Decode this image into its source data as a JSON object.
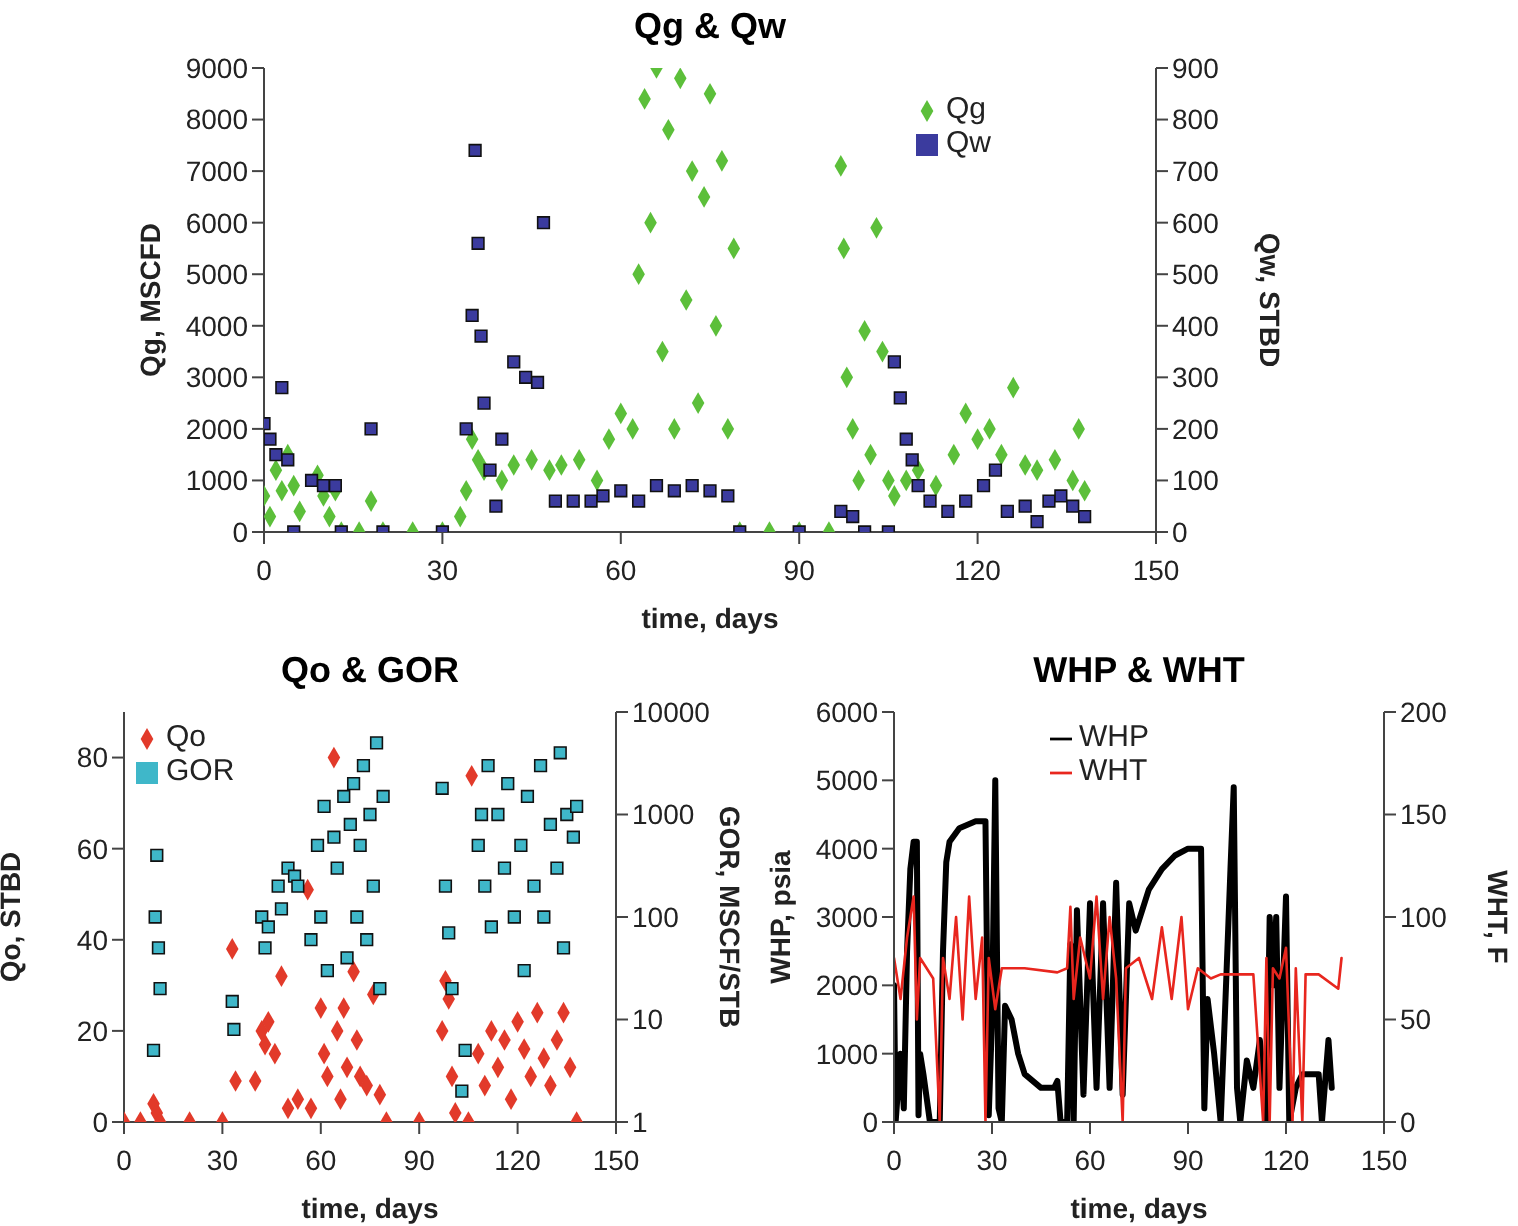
{
  "chart_data": [
    {
      "type": "scatter",
      "title": "Qg & Qw",
      "xlabel": "time, days",
      "ylabel": "Qg, MSCFD",
      "y2label": "Qw, STBD",
      "xlim": [
        0,
        150
      ],
      "xticks": [
        0,
        30,
        60,
        90,
        120,
        150
      ],
      "ylim": [
        0,
        9000
      ],
      "yticks": [
        0,
        1000,
        2000,
        3000,
        4000,
        5000,
        6000,
        7000,
        8000,
        9000
      ],
      "y2lim": [
        0,
        900
      ],
      "y2ticks": [
        0,
        100,
        200,
        300,
        400,
        500,
        600,
        700,
        800,
        900
      ],
      "legend": "top right",
      "series": [
        {
          "name": "Qg",
          "color": "#5cbf3a",
          "marker": "diamond",
          "x": [
            0,
            1,
            2,
            3,
            4,
            5,
            6,
            9,
            10,
            11,
            12,
            13,
            16,
            18,
            20,
            25,
            30,
            33,
            34,
            35,
            36,
            37,
            40,
            42,
            45,
            48,
            50,
            53,
            56,
            58,
            60,
            62,
            63,
            64,
            65,
            66,
            67,
            68,
            69,
            70,
            71,
            72,
            73,
            74,
            75,
            76,
            77,
            78,
            79,
            80,
            85,
            90,
            95,
            97,
            97.5,
            98,
            99,
            100,
            101,
            102,
            103,
            104,
            105,
            106,
            108,
            110,
            113,
            116,
            118,
            120,
            122,
            124,
            126,
            128,
            130,
            133,
            136,
            137,
            138
          ],
          "values": [
            700,
            300,
            1200,
            800,
            1500,
            900,
            400,
            1100,
            700,
            300,
            800,
            0,
            0,
            600,
            0,
            0,
            0,
            300,
            800,
            1800,
            1400,
            1200,
            1000,
            1300,
            1400,
            1200,
            1300,
            1400,
            1000,
            1800,
            2300,
            2000,
            5000,
            8400,
            6000,
            9000,
            3500,
            7800,
            2000,
            8800,
            4500,
            7000,
            2500,
            6500,
            8500,
            4000,
            7200,
            2000,
            5500,
            0,
            0,
            0,
            0,
            7100,
            5500,
            3000,
            2000,
            1000,
            3900,
            1500,
            5900,
            3500,
            1000,
            700,
            1000,
            1200,
            900,
            1500,
            2300,
            1800,
            2000,
            1500,
            2800,
            1300,
            1200,
            1400,
            1000,
            2000,
            800
          ]
        },
        {
          "name": "Qw",
          "color": "#3b3b9e",
          "marker": "square",
          "axis": "y2",
          "x": [
            0,
            1,
            2,
            3,
            4,
            5,
            8,
            10,
            12,
            13,
            18,
            20,
            30,
            34,
            35,
            35.5,
            36,
            36.5,
            37,
            38,
            39,
            40,
            42,
            44,
            46,
            47,
            49,
            52,
            55,
            57,
            60,
            63,
            66,
            69,
            72,
            75,
            78,
            80,
            90,
            97,
            99,
            101,
            105,
            106,
            107,
            108,
            109,
            110,
            112,
            115,
            118,
            121,
            123,
            125,
            128,
            130,
            132,
            134,
            136,
            138
          ],
          "values": [
            210,
            180,
            150,
            280,
            140,
            0,
            100,
            90,
            90,
            0,
            200,
            0,
            0,
            200,
            420,
            740,
            560,
            380,
            250,
            120,
            50,
            180,
            330,
            300,
            290,
            600,
            60,
            60,
            60,
            70,
            80,
            60,
            90,
            80,
            90,
            80,
            70,
            0,
            0,
            40,
            30,
            0,
            0,
            330,
            260,
            180,
            140,
            90,
            60,
            40,
            60,
            90,
            120,
            40,
            50,
            20,
            60,
            70,
            50,
            30
          ]
        }
      ]
    },
    {
      "type": "scatter",
      "title": "Qo & GOR",
      "xlabel": "time, days",
      "ylabel": "Qo, STBD",
      "y2label": "GOR, MSCF/STB",
      "xlim": [
        0,
        150
      ],
      "xticks": [
        0,
        30,
        60,
        90,
        120,
        150
      ],
      "ylim": [
        0,
        90
      ],
      "yticks": [
        0,
        20,
        40,
        60,
        80
      ],
      "y2lim": [
        1,
        10000
      ],
      "y2ticks": [
        1,
        10,
        100,
        1000,
        10000
      ],
      "log": "y2",
      "legend": "top left",
      "series": [
        {
          "name": "Qo",
          "color": "#e23a2a",
          "marker": "diamond",
          "x": [
            0,
            5,
            9,
            10,
            11,
            20,
            30,
            33,
            34,
            40,
            42,
            43,
            44,
            46,
            48,
            50,
            53,
            56,
            57,
            60,
            61,
            62,
            64,
            65,
            66,
            67,
            68,
            70,
            71,
            72,
            74,
            76,
            78,
            80,
            90,
            97,
            98,
            99,
            100,
            101,
            105,
            106,
            108,
            110,
            112,
            114,
            116,
            118,
            120,
            122,
            124,
            126,
            128,
            130,
            132,
            134,
            136,
            138
          ],
          "values": [
            0,
            0,
            4,
            2,
            0,
            0,
            0,
            38,
            9,
            9,
            20,
            17,
            22,
            15,
            32,
            3,
            5,
            51,
            3,
            25,
            15,
            10,
            80,
            20,
            5,
            25,
            12,
            33,
            18,
            10,
            8,
            28,
            6,
            0,
            0,
            20,
            31,
            27,
            10,
            2,
            0,
            76,
            15,
            8,
            20,
            12,
            18,
            5,
            22,
            16,
            10,
            24,
            14,
            8,
            18,
            24,
            12,
            0
          ]
        },
        {
          "name": "GOR",
          "color": "#3fb7c9",
          "marker": "square",
          "axis": "y2",
          "x": [
            9,
            9.5,
            10,
            10.5,
            11,
            33,
            33.5,
            42,
            43,
            44,
            47,
            48,
            50,
            52,
            53,
            57,
            59,
            60,
            61,
            62,
            64,
            65,
            67,
            68,
            69,
            70,
            71,
            72,
            73,
            74,
            75,
            76,
            77,
            78,
            79,
            97,
            98,
            99,
            100,
            103,
            104,
            108,
            109,
            110,
            111,
            112,
            114,
            116,
            117,
            119,
            121,
            122,
            123,
            125,
            127,
            128,
            130,
            132,
            133,
            134,
            135,
            137,
            138
          ],
          "values": [
            5,
            100,
            400,
            50,
            20,
            15,
            8,
            100,
            50,
            80,
            200,
            120,
            300,
            250,
            200,
            60,
            500,
            100,
            1200,
            30,
            600,
            300,
            1500,
            40,
            800,
            2000,
            100,
            500,
            3000,
            60,
            1000,
            200,
            5000,
            20,
            1500,
            1800,
            200,
            70,
            20,
            2,
            5,
            500,
            1000,
            200,
            3000,
            80,
            1000,
            300,
            2000,
            100,
            500,
            30,
            1500,
            200,
            3000,
            100,
            800,
            300,
            4000,
            50,
            1000,
            600,
            1200
          ]
        }
      ]
    },
    {
      "type": "line",
      "title": "WHP & WHT",
      "xlabel": "time, days",
      "ylabel": "WHP, psia",
      "y2label": "WHT, F",
      "xlim": [
        0,
        150
      ],
      "xticks": [
        0,
        30,
        60,
        90,
        120,
        150
      ],
      "ylim": [
        0,
        6000
      ],
      "yticks": [
        0,
        1000,
        2000,
        3000,
        4000,
        5000,
        6000
      ],
      "y2lim": [
        0,
        200
      ],
      "y2ticks": [
        0,
        50,
        100,
        150,
        200
      ],
      "legend": "top",
      "series": [
        {
          "name": "WHP",
          "color": "#000000",
          "x": [
            0,
            0.5,
            2,
            3,
            4,
            5,
            6,
            7,
            7.5,
            8,
            9,
            11,
            13,
            14,
            15,
            16,
            17,
            20,
            25,
            28,
            29,
            30,
            31,
            32,
            33,
            34,
            36,
            38,
            40,
            45,
            49,
            50,
            51,
            53,
            54,
            55,
            56,
            58,
            60,
            62,
            64,
            66,
            68,
            70,
            72,
            74,
            78,
            82,
            86,
            90,
            94,
            95,
            96,
            98,
            100,
            101,
            103,
            104,
            105,
            106,
            108,
            110,
            112,
            114,
            115,
            116,
            117,
            118,
            120,
            121,
            123,
            125,
            130,
            131,
            133,
            134
          ],
          "values": [
            2000,
            0,
            1000,
            200,
            2500,
            3700,
            4100,
            4100,
            100,
            1000,
            700,
            0,
            0,
            0,
            2500,
            3800,
            4100,
            4300,
            4400,
            4400,
            100,
            1500,
            5000,
            200,
            0,
            1700,
            1500,
            1000,
            700,
            500,
            500,
            600,
            0,
            0,
            2600,
            0,
            3100,
            400,
            3200,
            500,
            3200,
            500,
            3500,
            400,
            3200,
            2800,
            3400,
            3700,
            3900,
            4000,
            4000,
            200,
            1800,
            1000,
            0,
            1200,
            3700,
            4900,
            500,
            0,
            900,
            500,
            1200,
            0,
            3000,
            2000,
            3000,
            500,
            3300,
            0,
            500,
            700,
            700,
            0,
            1200,
            500
          ]
        },
        {
          "name": "WHT",
          "color": "#e8261e",
          "axis": "y2",
          "x": [
            0,
            2,
            4,
            6,
            7,
            8,
            10,
            12,
            14,
            15,
            17,
            19,
            21,
            23,
            25,
            27,
            28,
            29,
            31,
            33,
            40,
            50,
            53,
            54,
            55,
            57,
            60,
            62,
            64,
            66,
            68,
            70,
            71,
            75,
            79,
            82,
            85,
            88,
            90,
            93,
            97,
            100,
            110,
            113,
            114,
            115,
            116,
            118,
            120,
            122,
            123,
            125,
            126,
            130,
            136,
            137
          ],
          "values": [
            80,
            60,
            90,
            110,
            50,
            80,
            75,
            70,
            0,
            80,
            60,
            100,
            50,
            110,
            60,
            90,
            0,
            80,
            55,
            75,
            75,
            73,
            75,
            105,
            60,
            90,
            70,
            110,
            60,
            100,
            70,
            0,
            75,
            80,
            60,
            95,
            60,
            100,
            55,
            75,
            70,
            72,
            72,
            0,
            80,
            0,
            75,
            70,
            85,
            0,
            75,
            0,
            72,
            72,
            65,
            80
          ]
        }
      ]
    }
  ]
}
